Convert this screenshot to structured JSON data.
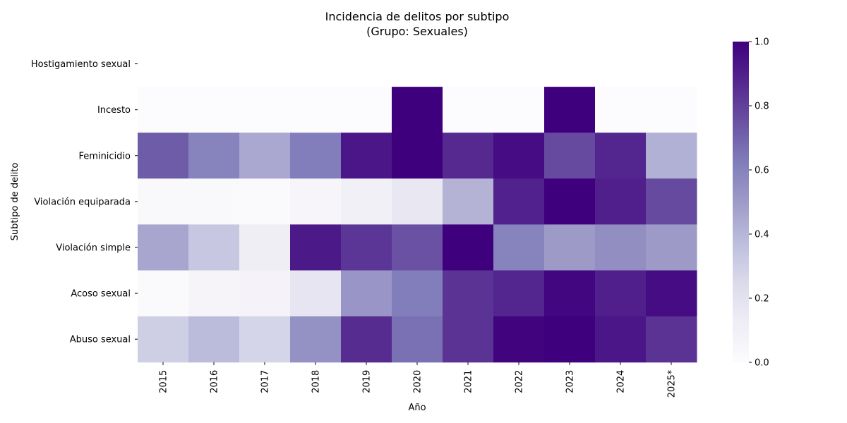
{
  "chart_data": {
    "type": "heatmap",
    "title": "Incidencia de delitos por subtipo",
    "subtitle": "(Grupo: Sexuales)",
    "xlabel": "Año",
    "ylabel": "Subtipo de delito",
    "x": [
      "2015",
      "2016",
      "2017",
      "2018",
      "2019",
      "2020",
      "2021",
      "2022",
      "2023",
      "2024",
      "2025*"
    ],
    "y": [
      "Hostigamiento sexual",
      "Incesto",
      "Feminicidio",
      "Violación equiparada",
      "Violación simple",
      "Acoso sexual",
      "Abuso sexual"
    ],
    "values": [
      [
        null,
        null,
        null,
        null,
        null,
        null,
        null,
        null,
        null,
        null,
        null
      ],
      [
        0.0,
        0.0,
        0.0,
        0.0,
        0.0,
        1.0,
        0.0,
        0.0,
        1.0,
        0.0,
        0.0
      ],
      [
        0.72,
        0.6,
        0.45,
        0.62,
        0.93,
        1.0,
        0.87,
        0.96,
        0.77,
        0.88,
        0.42
      ],
      [
        0.03,
        0.03,
        0.02,
        0.05,
        0.1,
        0.16,
        0.41,
        0.89,
        1.0,
        0.9,
        0.77
      ],
      [
        0.46,
        0.33,
        0.12,
        0.92,
        0.83,
        0.75,
        1.0,
        0.6,
        0.5,
        0.55,
        0.5
      ],
      [
        0.02,
        0.06,
        0.07,
        0.18,
        0.52,
        0.62,
        0.84,
        0.88,
        0.98,
        0.9,
        0.96
      ],
      [
        0.3,
        0.38,
        0.27,
        0.54,
        0.86,
        0.66,
        0.84,
        0.99,
        1.0,
        0.93,
        0.84
      ]
    ],
    "colorbar": {
      "min": 0.0,
      "max": 1.0,
      "ticks": [
        "0.0",
        "0.2",
        "0.4",
        "0.6",
        "0.8",
        "1.0"
      ]
    },
    "colormap": [
      "#fcfbfd",
      "#efedf5",
      "#dadaeb",
      "#bcbddc",
      "#9e9ac8",
      "#807dba",
      "#6a51a3",
      "#54278f",
      "#3f007d"
    ]
  }
}
